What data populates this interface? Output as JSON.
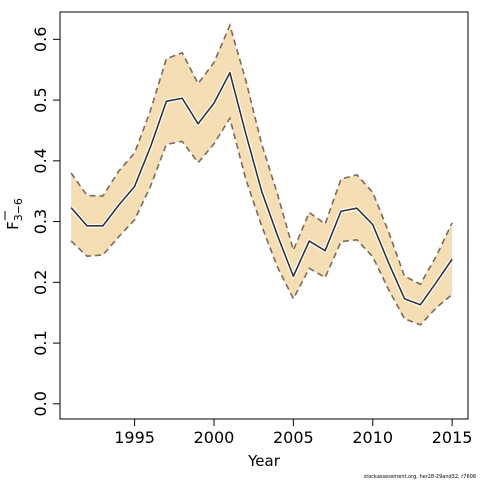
{
  "chart_data": {
    "type": "line",
    "title": "",
    "xlabel": "Year",
    "ylabel_main": "F",
    "ylabel_sub": "3−6",
    "xlim": [
      1990.3,
      2016.0
    ],
    "ylim": [
      -0.025,
      0.645
    ],
    "xticks": [
      1995,
      2000,
      2005,
      2010,
      2015
    ],
    "yticks": [
      0.0,
      0.1,
      0.2,
      0.3,
      0.4,
      0.5,
      0.6
    ],
    "ytick_labels": [
      "0.0",
      "0.1",
      "0.2",
      "0.3",
      "0.4",
      "0.5",
      "0.6"
    ],
    "band_color": "#f5deb3",
    "line_color": "#333333",
    "bound_color": "#7a6a5a",
    "series": [
      {
        "role": "estimate",
        "x": [
          1991,
          1992,
          1993,
          1994,
          1995,
          1996,
          1997,
          1998,
          1999,
          2000,
          2001,
          2002,
          2003,
          2004,
          2005,
          2006,
          2007,
          2008,
          2009,
          2010,
          2011,
          2012,
          2013,
          2014,
          2015
        ],
        "values": [
          0.323,
          0.293,
          0.293,
          0.327,
          0.358,
          0.423,
          0.498,
          0.503,
          0.461,
          0.495,
          0.545,
          0.445,
          0.35,
          0.277,
          0.21,
          0.268,
          0.252,
          0.317,
          0.322,
          0.295,
          0.232,
          0.173,
          0.163,
          0.2,
          0.238
        ]
      },
      {
        "role": "upper",
        "x": [
          1991,
          1992,
          1993,
          1994,
          1995,
          1996,
          1997,
          1998,
          1999,
          2000,
          2001,
          2002,
          2003,
          2004,
          2005,
          2006,
          2007,
          2008,
          2009,
          2010,
          2011,
          2012,
          2013,
          2014,
          2015
        ],
        "values": [
          0.38,
          0.343,
          0.342,
          0.383,
          0.413,
          0.483,
          0.568,
          0.578,
          0.527,
          0.562,
          0.623,
          0.533,
          0.428,
          0.345,
          0.253,
          0.315,
          0.296,
          0.37,
          0.377,
          0.348,
          0.283,
          0.21,
          0.197,
          0.243,
          0.298
        ]
      },
      {
        "role": "lower",
        "x": [
          1991,
          1992,
          1993,
          1994,
          1995,
          1996,
          1997,
          1998,
          1999,
          2000,
          2001,
          2002,
          2003,
          2004,
          2005,
          2006,
          2007,
          2008,
          2009,
          2010,
          2011,
          2012,
          2013,
          2014,
          2015
        ],
        "values": [
          0.268,
          0.243,
          0.245,
          0.275,
          0.303,
          0.358,
          0.427,
          0.432,
          0.397,
          0.428,
          0.47,
          0.37,
          0.293,
          0.225,
          0.173,
          0.223,
          0.208,
          0.267,
          0.27,
          0.242,
          0.188,
          0.14,
          0.13,
          0.158,
          0.18
        ]
      }
    ]
  },
  "footer": {
    "credit": "stockassessment.org, her28-29and32, r7608"
  }
}
